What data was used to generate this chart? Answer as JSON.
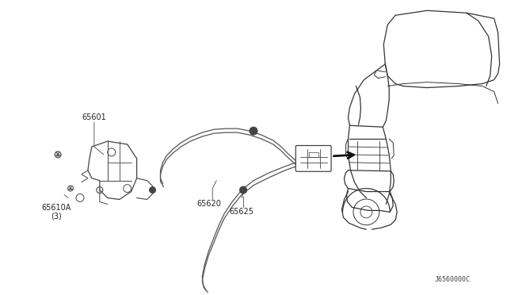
{
  "background_color": "#ffffff",
  "fig_width": 6.4,
  "fig_height": 3.72,
  "dpi": 100,
  "label_fontsize": 7.0,
  "diagram_color": "#444444",
  "line_color": "#555555"
}
